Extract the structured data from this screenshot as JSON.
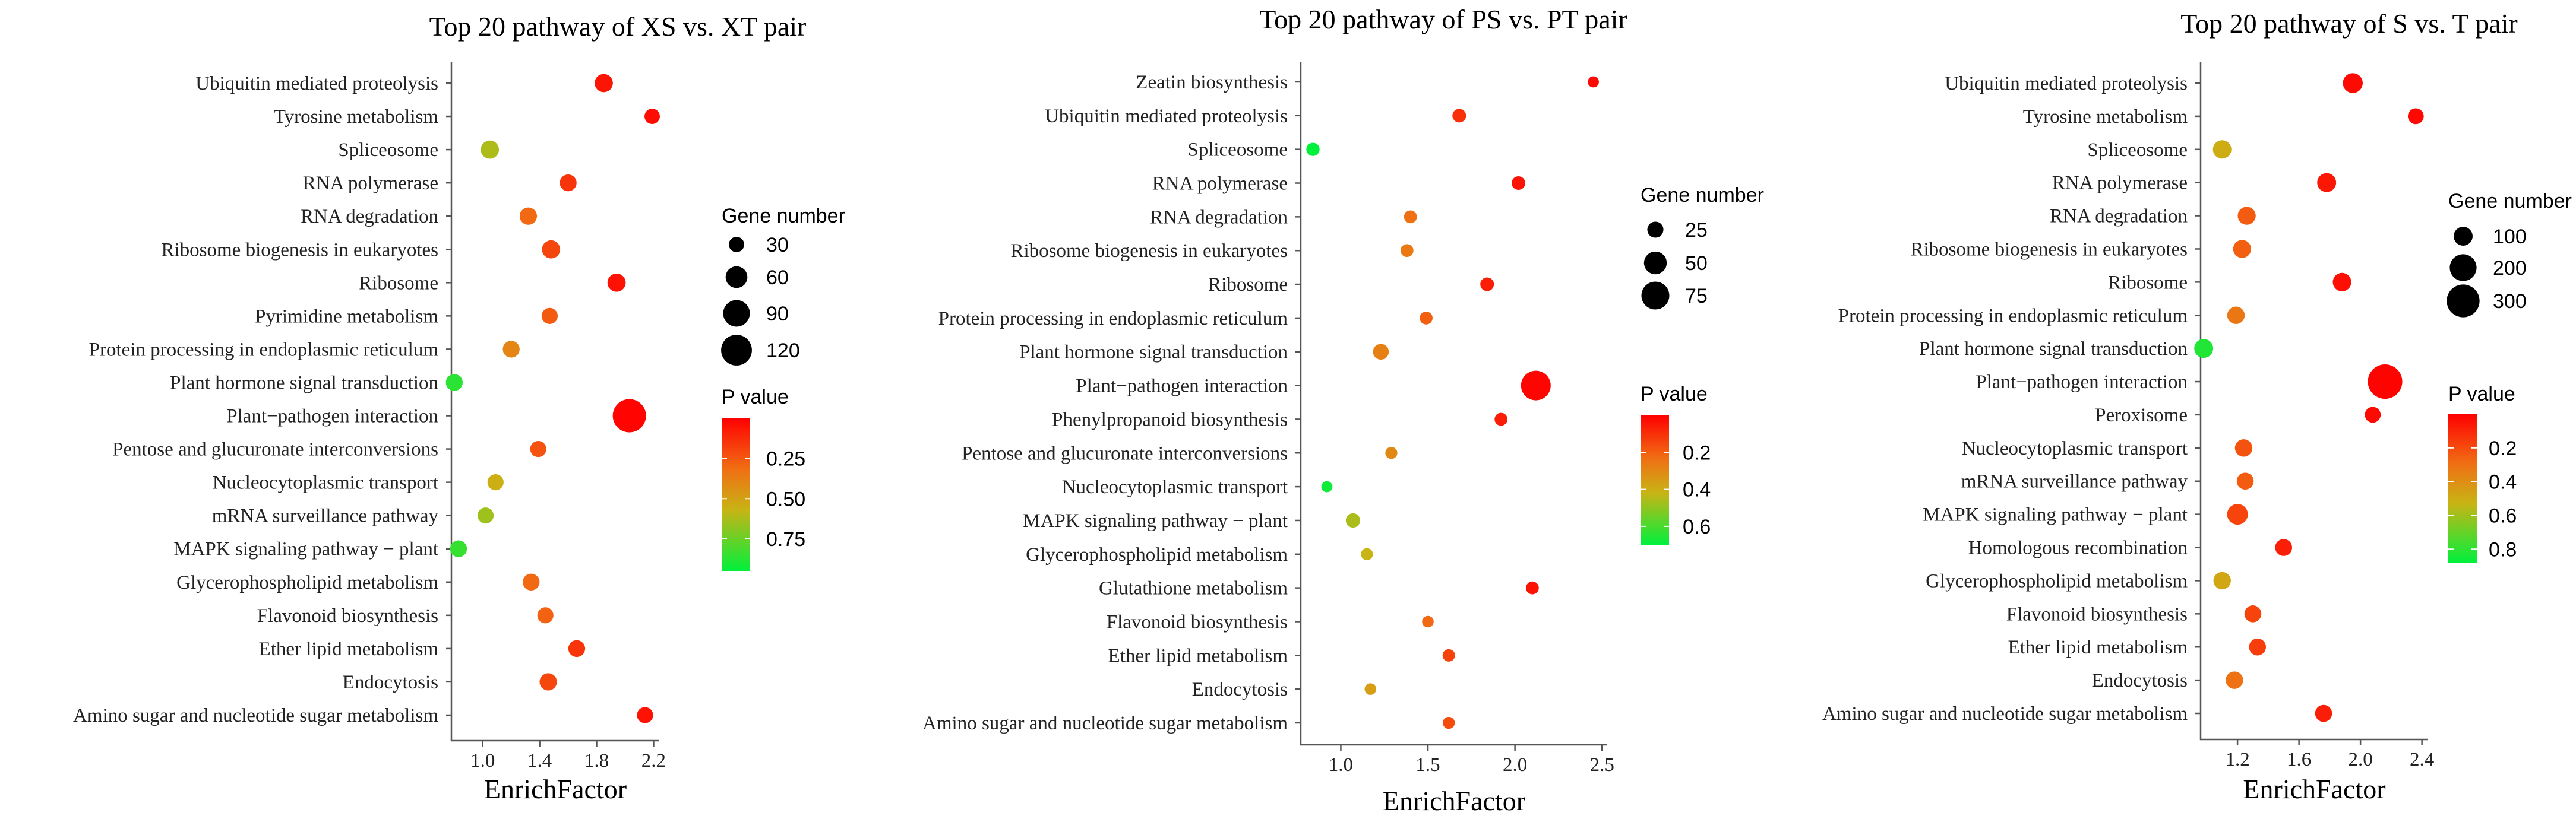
{
  "chart_data": [
    {
      "type": "scatter",
      "title": "Top 20 pathway of  XS vs. XT pair",
      "xlabel": "EnrichFactor",
      "ylabel": "",
      "xlim": [
        0.78,
        2.24
      ],
      "xticks": [
        1.0,
        1.4,
        1.8,
        2.2
      ],
      "x_tick_labels": [
        "1.0",
        "1.4",
        "1.8",
        "2.2"
      ],
      "categories": [
        "Ubiquitin mediated proteolysis",
        "Tyrosine metabolism",
        "Spliceosome",
        "RNA polymerase",
        "RNA degradation",
        "Ribosome biogenesis in eukaryotes",
        "Ribosome",
        "Pyrimidine metabolism",
        "Protein processing in endoplasmic reticulum",
        "Plant hormone signal transduction",
        "Plant−pathogen interaction",
        "Pentose and glucuronate interconversions",
        "Nucleocytoplasmic transport",
        "mRNA surveillance pathway",
        "MAPK signaling pathway − plant",
        "Glycerophospholipid metabolism",
        "Flavonoid biosynthesis",
        "Ether lipid metabolism",
        "Endocytosis",
        "Amino sugar and nucleotide sugar metabolism"
      ],
      "points": [
        {
          "pathway": "Ubiquitin mediated proteolysis",
          "x": 1.85,
          "gene_number": 42,
          "p_value": 0.06
        },
        {
          "pathway": "Tyrosine metabolism",
          "x": 2.19,
          "gene_number": 30,
          "p_value": 0.03
        },
        {
          "pathway": "Spliceosome",
          "x": 1.05,
          "gene_number": 42,
          "p_value": 0.62
        },
        {
          "pathway": "RNA polymerase",
          "x": 1.6,
          "gene_number": 36,
          "p_value": 0.15
        },
        {
          "pathway": "RNA degradation",
          "x": 1.32,
          "gene_number": 38,
          "p_value": 0.3
        },
        {
          "pathway": "Ribosome biogenesis in eukaryotes",
          "x": 1.48,
          "gene_number": 42,
          "p_value": 0.2
        },
        {
          "pathway": "Ribosome",
          "x": 1.94,
          "gene_number": 42,
          "p_value": 0.05
        },
        {
          "pathway": "Pyrimidine metabolism",
          "x": 1.47,
          "gene_number": 33,
          "p_value": 0.26
        },
        {
          "pathway": "Protein processing in endoplasmic reticulum",
          "x": 1.2,
          "gene_number": 36,
          "p_value": 0.4
        },
        {
          "pathway": "Plant hormone signal transduction",
          "x": 0.8,
          "gene_number": 36,
          "p_value": 0.87
        },
        {
          "pathway": "Plant−pathogen interaction",
          "x": 2.03,
          "gene_number": 140,
          "p_value": 0.01
        },
        {
          "pathway": "Pentose and glucuronate interconversions",
          "x": 1.39,
          "gene_number": 33,
          "p_value": 0.24
        },
        {
          "pathway": "Nucleocytoplasmic transport",
          "x": 1.09,
          "gene_number": 33,
          "p_value": 0.55
        },
        {
          "pathway": "mRNA surveillance pathway",
          "x": 1.02,
          "gene_number": 33,
          "p_value": 0.65
        },
        {
          "pathway": "MAPK signaling pathway − plant",
          "x": 0.83,
          "gene_number": 36,
          "p_value": 0.85
        },
        {
          "pathway": "Glycerophospholipid metabolism",
          "x": 1.34,
          "gene_number": 36,
          "p_value": 0.3
        },
        {
          "pathway": "Flavonoid biosynthesis",
          "x": 1.44,
          "gene_number": 33,
          "p_value": 0.28
        },
        {
          "pathway": "Ether lipid metabolism",
          "x": 1.66,
          "gene_number": 36,
          "p_value": 0.15
        },
        {
          "pathway": "Endocytosis",
          "x": 1.46,
          "gene_number": 38,
          "p_value": 0.2
        },
        {
          "pathway": "Amino sugar and nucleotide sugar metabolism",
          "x": 2.14,
          "gene_number": 33,
          "p_value": 0.05
        }
      ],
      "size_legend": {
        "title": "Gene number",
        "values": [
          30,
          60,
          90,
          120
        ],
        "labels": [
          "30",
          "60",
          "90",
          "120"
        ]
      },
      "color_legend": {
        "title": "P value",
        "range": [
          0.0,
          0.95
        ],
        "ticks": [
          0.25,
          0.5,
          0.75
        ],
        "tick_labels": [
          "0.25",
          "0.50",
          "0.75"
        ]
      }
    },
    {
      "type": "scatter",
      "title": "Top 20 pathway of  PS vs. PT pair",
      "xlabel": "EnrichFactor",
      "ylabel": "",
      "xlim": [
        0.77,
        2.53
      ],
      "xticks": [
        1.0,
        1.5,
        2.0,
        2.5
      ],
      "x_tick_labels": [
        "1.0",
        "1.5",
        "2.0",
        "2.5"
      ],
      "categories": [
        "Zeatin biosynthesis",
        "Ubiquitin mediated proteolysis",
        "Spliceosome",
        "RNA polymerase",
        "RNA degradation",
        "Ribosome biogenesis in eukaryotes",
        "Ribosome",
        "Protein processing in endoplasmic reticulum",
        "Plant hormone signal transduction",
        "Plant−pathogen interaction",
        "Phenylpropanoid biosynthesis",
        "Pentose and glucuronate interconversions",
        "Nucleocytoplasmic transport",
        "MAPK signaling pathway − plant",
        "Glycerophospholipid metabolism",
        "Glutathione metabolism",
        "Flavonoid biosynthesis",
        "Ether lipid metabolism",
        "Endocytosis",
        "Amino sugar and nucleotide sugar metabolism"
      ],
      "points": [
        {
          "pathway": "Zeatin biosynthesis",
          "x": 2.45,
          "gene_number": 12,
          "p_value": 0.02
        },
        {
          "pathway": "Ubiquitin mediated proteolysis",
          "x": 1.68,
          "gene_number": 18,
          "p_value": 0.1
        },
        {
          "pathway": "Spliceosome",
          "x": 0.84,
          "gene_number": 17,
          "p_value": 0.7
        },
        {
          "pathway": "RNA polymerase",
          "x": 2.02,
          "gene_number": 18,
          "p_value": 0.04
        },
        {
          "pathway": "RNA degradation",
          "x": 1.4,
          "gene_number": 16,
          "p_value": 0.24
        },
        {
          "pathway": "Ribosome biogenesis in eukaryotes",
          "x": 1.38,
          "gene_number": 16,
          "p_value": 0.26
        },
        {
          "pathway": "Ribosome",
          "x": 1.84,
          "gene_number": 18,
          "p_value": 0.06
        },
        {
          "pathway": "Protein processing in endoplasmic reticulum",
          "x": 1.49,
          "gene_number": 16,
          "p_value": 0.2
        },
        {
          "pathway": "Plant hormone signal transduction",
          "x": 1.23,
          "gene_number": 24,
          "p_value": 0.28
        },
        {
          "pathway": "Plant−pathogen interaction",
          "x": 2.12,
          "gene_number": 85,
          "p_value": 0.01
        },
        {
          "pathway": "Phenylpropanoid biosynthesis",
          "x": 1.92,
          "gene_number": 16,
          "p_value": 0.06
        },
        {
          "pathway": "Pentose and glucuronate interconversions",
          "x": 1.29,
          "gene_number": 14,
          "p_value": 0.3
        },
        {
          "pathway": "Nucleocytoplasmic transport",
          "x": 0.92,
          "gene_number": 12,
          "p_value": 0.68
        },
        {
          "pathway": "MAPK signaling pathway − plant",
          "x": 1.07,
          "gene_number": 20,
          "p_value": 0.46
        },
        {
          "pathway": "Glycerophospholipid metabolism",
          "x": 1.15,
          "gene_number": 14,
          "p_value": 0.42
        },
        {
          "pathway": "Glutathione metabolism",
          "x": 2.1,
          "gene_number": 16,
          "p_value": 0.04
        },
        {
          "pathway": "Flavonoid biosynthesis",
          "x": 1.5,
          "gene_number": 13,
          "p_value": 0.22
        },
        {
          "pathway": "Ether lipid metabolism",
          "x": 1.62,
          "gene_number": 15,
          "p_value": 0.14
        },
        {
          "pathway": "Endocytosis",
          "x": 1.17,
          "gene_number": 13,
          "p_value": 0.36
        },
        {
          "pathway": "Amino sugar and nucleotide sugar metabolism",
          "x": 1.62,
          "gene_number": 14,
          "p_value": 0.16
        }
      ],
      "size_legend": {
        "title": "Gene number",
        "values": [
          25,
          50,
          75
        ],
        "labels": [
          "25",
          "50",
          "75"
        ]
      },
      "color_legend": {
        "title": "P value",
        "range": [
          0.0,
          0.7
        ],
        "ticks": [
          0.2,
          0.4,
          0.6
        ],
        "tick_labels": [
          "0.2",
          "0.4",
          "0.6"
        ]
      }
    },
    {
      "type": "scatter",
      "title": "Top 20 pathway of  S vs. T pair",
      "xlabel": "EnrichFactor",
      "ylabel": "",
      "xlim": [
        0.96,
        2.44
      ],
      "xticks": [
        1.2,
        1.6,
        2.0,
        2.4
      ],
      "x_tick_labels": [
        "1.2",
        "1.6",
        "2.0",
        "2.4"
      ],
      "categories": [
        "Ubiquitin mediated proteolysis",
        "Tyrosine metabolism",
        "Spliceosome",
        "RNA polymerase",
        "RNA degradation",
        "Ribosome biogenesis in eukaryotes",
        "Ribosome",
        "Protein processing in endoplasmic reticulum",
        "Plant hormone signal transduction",
        "Plant−pathogen interaction",
        "Peroxisome",
        "Nucleocytoplasmic transport",
        "mRNA surveillance pathway",
        "MAPK signaling pathway − plant",
        "Homologous recombination",
        "Glycerophospholipid metabolism",
        "Flavonoid biosynthesis",
        "Ether lipid metabolism",
        "Endocytosis",
        "Amino sugar and nucleotide sugar metabolism"
      ],
      "points": [
        {
          "pathway": "Ubiquitin mediated proteolysis",
          "x": 1.95,
          "gene_number": 110,
          "p_value": 0.03
        },
        {
          "pathway": "Tyrosine metabolism",
          "x": 2.36,
          "gene_number": 70,
          "p_value": 0.02
        },
        {
          "pathway": "Spliceosome",
          "x": 1.1,
          "gene_number": 95,
          "p_value": 0.5
        },
        {
          "pathway": "RNA polymerase",
          "x": 1.78,
          "gene_number": 100,
          "p_value": 0.06
        },
        {
          "pathway": "RNA degradation",
          "x": 1.26,
          "gene_number": 90,
          "p_value": 0.24
        },
        {
          "pathway": "Ribosome biogenesis in eukaryotes",
          "x": 1.23,
          "gene_number": 90,
          "p_value": 0.25
        },
        {
          "pathway": "Ribosome",
          "x": 1.88,
          "gene_number": 95,
          "p_value": 0.04
        },
        {
          "pathway": "Protein processing in endoplasmic reticulum",
          "x": 1.19,
          "gene_number": 85,
          "p_value": 0.32
        },
        {
          "pathway": "Plant hormone signal transduction",
          "x": 0.98,
          "gene_number": 100,
          "p_value": 0.82
        },
        {
          "pathway": "Plant−pathogen interaction",
          "x": 2.16,
          "gene_number": 330,
          "p_value": 0.01
        },
        {
          "pathway": "Peroxisome",
          "x": 2.08,
          "gene_number": 70,
          "p_value": 0.03
        },
        {
          "pathway": "Nucleocytoplasmic transport",
          "x": 1.24,
          "gene_number": 85,
          "p_value": 0.22
        },
        {
          "pathway": "mRNA surveillance pathway",
          "x": 1.25,
          "gene_number": 80,
          "p_value": 0.24
        },
        {
          "pathway": "MAPK signaling pathway − plant",
          "x": 1.2,
          "gene_number": 120,
          "p_value": 0.18
        },
        {
          "pathway": "Homologous recombination",
          "x": 1.5,
          "gene_number": 80,
          "p_value": 0.08
        },
        {
          "pathway": "Glycerophospholipid metabolism",
          "x": 1.1,
          "gene_number": 85,
          "p_value": 0.48
        },
        {
          "pathway": "Flavonoid biosynthesis",
          "x": 1.3,
          "gene_number": 80,
          "p_value": 0.18
        },
        {
          "pathway": "Ether lipid metabolism",
          "x": 1.33,
          "gene_number": 80,
          "p_value": 0.16
        },
        {
          "pathway": "Endocytosis",
          "x": 1.18,
          "gene_number": 85,
          "p_value": 0.3
        },
        {
          "pathway": "Amino sugar and nucleotide sugar metabolism",
          "x": 1.76,
          "gene_number": 80,
          "p_value": 0.08
        }
      ],
      "size_legend": {
        "title": "Gene number",
        "values": [
          100,
          200,
          300
        ],
        "labels": [
          "100",
          "200",
          "300"
        ]
      },
      "color_legend": {
        "title": "P value",
        "range": [
          0.0,
          0.88
        ],
        "ticks": [
          0.2,
          0.4,
          0.6,
          0.8
        ],
        "tick_labels": [
          "0.2",
          "0.4",
          "0.6",
          "0.8"
        ]
      }
    }
  ]
}
